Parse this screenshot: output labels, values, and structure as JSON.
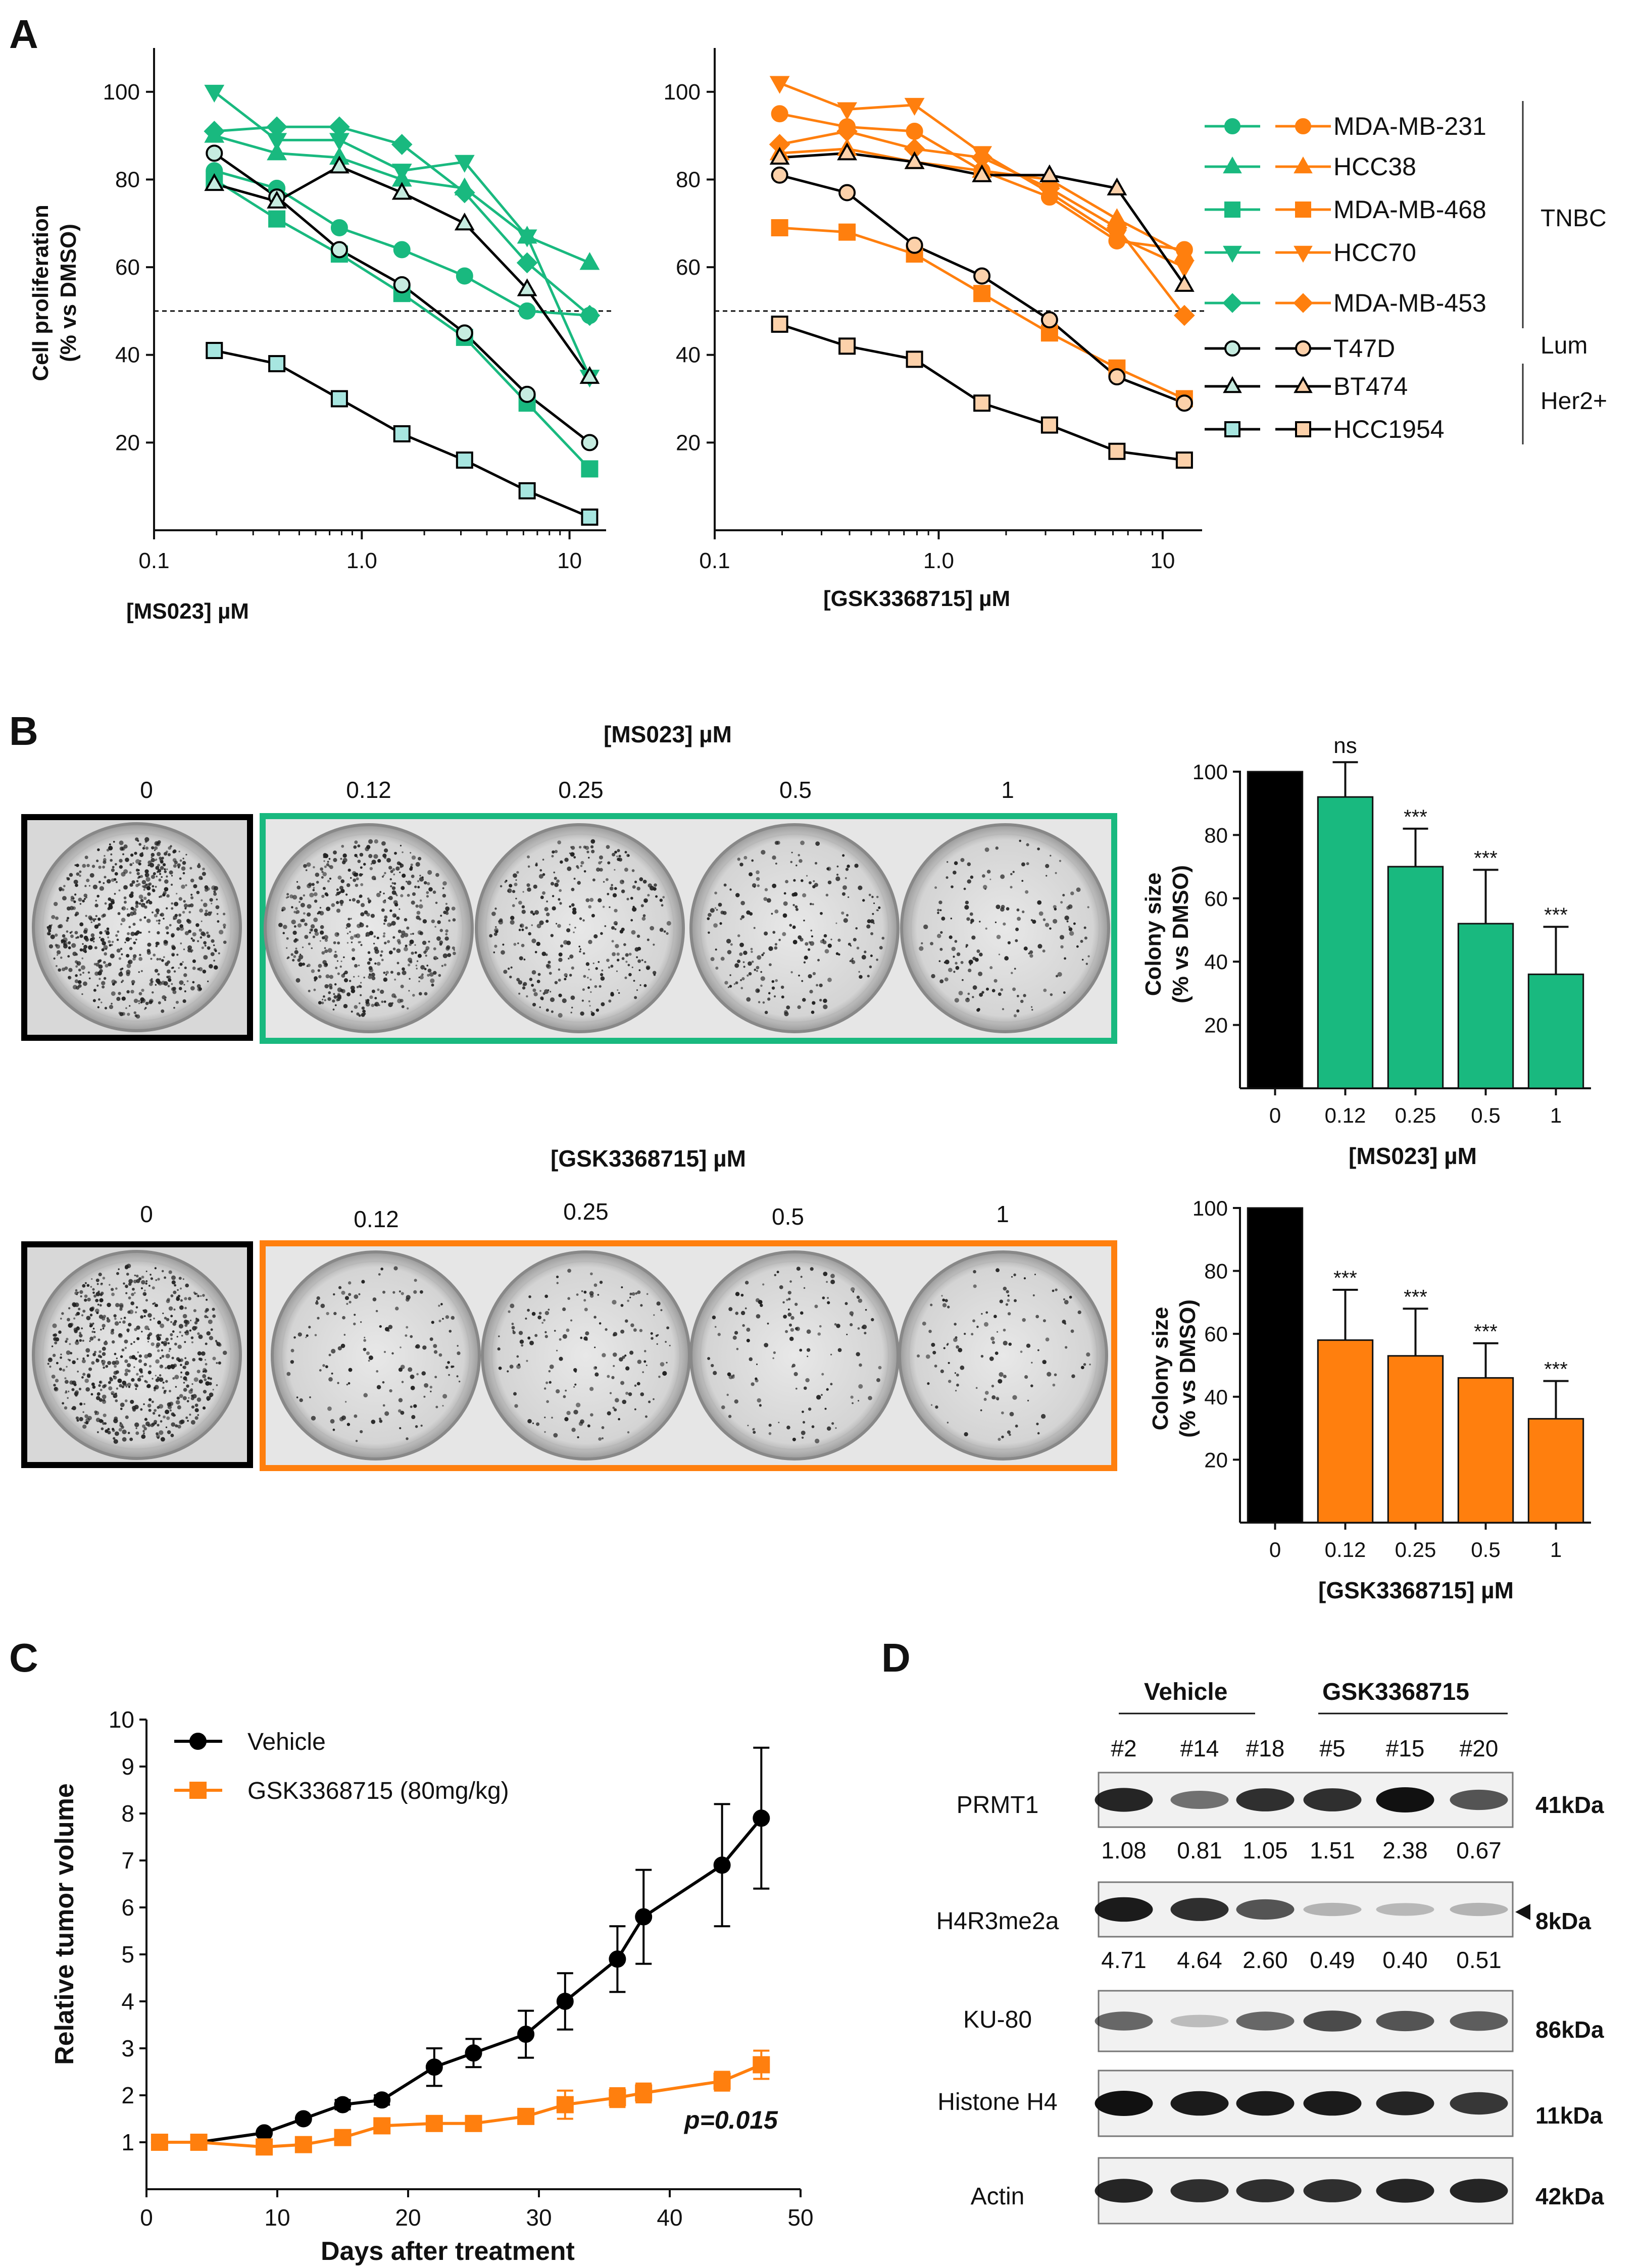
{
  "panels": {
    "a": "A",
    "b": "B",
    "c": "C",
    "d": "D"
  },
  "colors": {
    "green": "#19b97f",
    "orange": "#ff7f0e",
    "black": "#000000",
    "light_green": "#c6ece0",
    "light_orange": "#fcd1aa",
    "light_cyan": "#a7e6e0"
  },
  "chart_data": [
    {
      "id": "A-left",
      "type": "line",
      "xscale": "log",
      "xlabel": "[MS023] µM",
      "ylabel": "Cell proliferation",
      "ylabel2": "(% vs DMSO)",
      "xticks": [
        "0.1",
        "1.0",
        "10"
      ],
      "xlim": [
        0.1,
        15
      ],
      "yticks": [
        "20",
        "40",
        "60",
        "80",
        "100"
      ],
      "ylim": [
        0,
        110
      ],
      "reference_line": 50,
      "x": [
        0.195,
        0.39,
        0.78,
        1.56,
        3.125,
        6.25,
        12.5
      ],
      "series": [
        {
          "name": "MDA-MB-231",
          "group": "TNBC",
          "marker": "circle",
          "filled": true,
          "values": [
            82,
            78,
            69,
            64,
            58,
            50,
            49
          ]
        },
        {
          "name": "HCC38",
          "group": "TNBC",
          "marker": "triangle-up",
          "filled": true,
          "values": [
            90,
            86,
            85,
            80,
            78,
            67,
            61
          ]
        },
        {
          "name": "MDA-MB-468",
          "group": "TNBC",
          "marker": "square",
          "filled": true,
          "values": [
            80,
            71,
            63,
            54,
            44,
            29,
            14
          ]
        },
        {
          "name": "HCC70",
          "group": "TNBC",
          "marker": "triangle-down",
          "filled": true,
          "values": [
            100,
            89,
            89,
            82,
            84,
            67,
            35
          ]
        },
        {
          "name": "MDA-MB-453",
          "group": "TNBC",
          "marker": "diamond",
          "filled": true,
          "values": [
            91,
            92,
            92,
            88,
            77,
            61,
            49
          ]
        },
        {
          "name": "T47D",
          "group": "Lum",
          "marker": "circle",
          "filled": false,
          "values": [
            86,
            76,
            64,
            56,
            45,
            31,
            20
          ]
        },
        {
          "name": "BT474",
          "group": "Her2+",
          "marker": "triangle-up",
          "filled": false,
          "values": [
            79,
            75,
            83,
            77,
            70,
            55,
            35
          ]
        },
        {
          "name": "HCC1954",
          "group": "Her2+",
          "marker": "square",
          "filled": false,
          "values": [
            41,
            38,
            30,
            22,
            16,
            9,
            3
          ]
        }
      ]
    },
    {
      "id": "A-right",
      "type": "line",
      "xscale": "log",
      "xlabel": "[GSK3368715] µM",
      "xticks": [
        "0.1",
        "1.0",
        "10"
      ],
      "xlim": [
        0.1,
        15
      ],
      "yticks": [
        "20",
        "40",
        "60",
        "80",
        "100"
      ],
      "ylim": [
        0,
        110
      ],
      "reference_line": 50,
      "x": [
        0.195,
        0.39,
        0.78,
        1.56,
        3.125,
        6.25,
        12.5
      ],
      "series": [
        {
          "name": "MDA-MB-231",
          "group": "TNBC",
          "marker": "circle",
          "filled": true,
          "values": [
            95,
            92,
            91,
            82,
            76,
            66,
            64
          ]
        },
        {
          "name": "HCC38",
          "group": "TNBC",
          "marker": "triangle-up",
          "filled": true,
          "values": [
            86,
            87,
            84,
            82,
            80,
            71,
            63
          ]
        },
        {
          "name": "MDA-MB-468",
          "group": "TNBC",
          "marker": "square",
          "filled": true,
          "values": [
            69,
            68,
            63,
            54,
            45,
            37,
            30
          ]
        },
        {
          "name": "HCC70",
          "group": "TNBC",
          "marker": "triangle-down",
          "filled": true,
          "values": [
            102,
            96,
            97,
            86,
            77,
            67,
            60
          ]
        },
        {
          "name": "MDA-MB-453",
          "group": "TNBC",
          "marker": "diamond",
          "filled": true,
          "values": [
            88,
            91,
            87,
            85,
            78,
            69,
            49
          ]
        },
        {
          "name": "T47D",
          "group": "Lum",
          "marker": "circle",
          "filled": false,
          "values": [
            81,
            77,
            65,
            58,
            48,
            35,
            29
          ]
        },
        {
          "name": "BT474",
          "group": "Her2+",
          "marker": "triangle-up",
          "filled": false,
          "values": [
            85,
            86,
            84,
            81,
            81,
            78,
            56
          ]
        },
        {
          "name": "HCC1954",
          "group": "Her2+",
          "marker": "square",
          "filled": false,
          "values": [
            47,
            42,
            39,
            29,
            24,
            18,
            16
          ]
        }
      ]
    },
    {
      "id": "B-top",
      "type": "bar",
      "categories": [
        "0",
        "0.12",
        "0.25",
        "0.5",
        "1"
      ],
      "values": [
        100,
        92,
        70,
        52,
        36
      ],
      "errors": [
        0,
        11,
        12,
        17,
        15
      ],
      "annotations": [
        "",
        "ns",
        "***",
        "***",
        "***"
      ],
      "xlabel": "[MS023] µM",
      "ylabel": "Colony size",
      "ylabel2": "(% vs DMSO)",
      "yticks": [
        "20",
        "40",
        "60",
        "80",
        "100"
      ],
      "ylim": [
        0,
        100
      ]
    },
    {
      "id": "B-bottom",
      "type": "bar",
      "categories": [
        "0",
        "0.12",
        "0.25",
        "0.5",
        "1"
      ],
      "values": [
        100,
        58,
        53,
        46,
        33
      ],
      "errors": [
        0,
        16,
        15,
        11,
        12
      ],
      "annotations": [
        "",
        "***",
        "***",
        "***",
        "***"
      ],
      "xlabel": "[GSK3368715] µM",
      "ylabel": "Colony size",
      "ylabel2": "(% vs DMSO)",
      "yticks": [
        "20",
        "40",
        "60",
        "80",
        "100"
      ],
      "ylim": [
        0,
        100
      ]
    },
    {
      "id": "C",
      "type": "line",
      "xlabel": "Days after treatment",
      "ylabel": "Relative tumor volume",
      "xticks": [
        "0",
        "10",
        "20",
        "30",
        "40",
        "50"
      ],
      "xlim": [
        0,
        50
      ],
      "yticks": [
        "1",
        "2",
        "3",
        "4",
        "5",
        "6",
        "7",
        "8",
        "9",
        "10"
      ],
      "ylim": [
        0,
        10
      ],
      "annotation": "p=0.015",
      "series": [
        {
          "name": "Vehicle",
          "marker": "circle",
          "x": [
            1,
            4,
            9,
            12,
            15,
            18,
            22,
            25,
            29,
            32,
            36,
            38,
            44,
            47
          ],
          "values": [
            1.0,
            1.0,
            1.2,
            1.5,
            1.8,
            1.9,
            2.6,
            2.9,
            3.3,
            4.0,
            4.9,
            5.8,
            6.9,
            7.9
          ],
          "errors": [
            0,
            0,
            0,
            0,
            0.1,
            0.1,
            0.4,
            0.3,
            0.5,
            0.6,
            0.7,
            1.0,
            1.3,
            1.5
          ]
        },
        {
          "name": "GSK3368715 (80mg/kg)",
          "marker": "square",
          "x": [
            1,
            4,
            9,
            12,
            15,
            18,
            22,
            25,
            29,
            32,
            36,
            38,
            44,
            47
          ],
          "values": [
            1.0,
            1.0,
            0.9,
            0.95,
            1.1,
            1.35,
            1.4,
            1.4,
            1.55,
            1.8,
            1.95,
            2.05,
            2.3,
            2.65
          ],
          "errors": [
            0,
            0,
            0.1,
            0.1,
            0.1,
            0.1,
            0.1,
            0.1,
            0.1,
            0.3,
            0.2,
            0.2,
            0.2,
            0.3
          ]
        }
      ]
    }
  ],
  "legend_a": {
    "groups": [
      {
        "label": "TNBC"
      },
      {
        "label": "Lum"
      },
      {
        "label": "Her2+"
      }
    ]
  },
  "panel_b": {
    "top_title": "[MS023] µM",
    "bottom_title": "[GSK3368715] µM",
    "doses": [
      "0",
      "0.12",
      "0.25",
      "0.5",
      "1"
    ]
  },
  "panel_d": {
    "groups": [
      "Vehicle",
      "GSK3368715"
    ],
    "samples": [
      "#2",
      "#14",
      "#18",
      "#5",
      "#15",
      "#20"
    ],
    "blots": [
      {
        "label": "PRMT1",
        "size": "41kDa",
        "quant": [
          "1.08",
          "0.81",
          "1.05",
          "1.51",
          "2.38",
          "0.67"
        ],
        "intensity": [
          0.9,
          0.5,
          0.85,
          0.85,
          1.0,
          0.65
        ]
      },
      {
        "label": "H4R3me2a",
        "size": "8kDa",
        "quant": [
          "4.71",
          "4.64",
          "2.60",
          "0.49",
          "0.40",
          "0.51"
        ],
        "intensity": [
          0.95,
          0.85,
          0.65,
          0.15,
          0.12,
          0.15
        ]
      },
      {
        "label": "KU-80",
        "size": "86kDa",
        "quant": [],
        "intensity": [
          0.55,
          0.1,
          0.55,
          0.7,
          0.65,
          0.6
        ]
      },
      {
        "label": "Histone H4",
        "size": "11kDa",
        "quant": [],
        "intensity": [
          1.0,
          0.95,
          0.95,
          0.95,
          0.9,
          0.8
        ]
      },
      {
        "label": "Actin",
        "size": "42kDa",
        "quant": [],
        "intensity": [
          0.9,
          0.85,
          0.85,
          0.85,
          0.9,
          0.9
        ]
      }
    ]
  }
}
